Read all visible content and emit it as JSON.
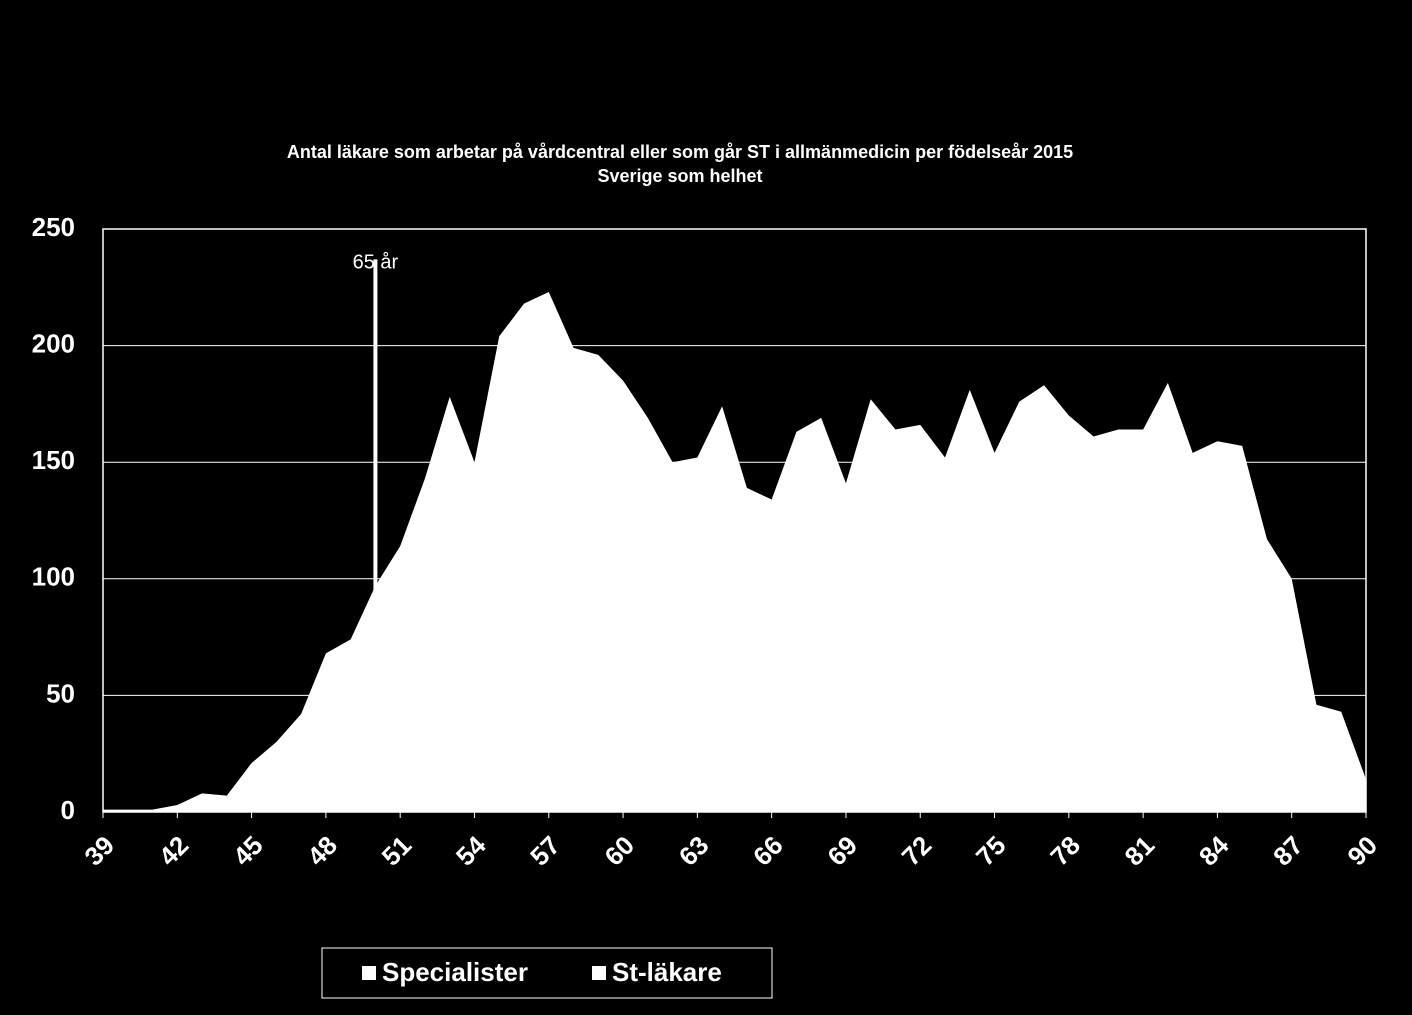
{
  "chart_data": {
    "type": "area",
    "title": "Antal läkare som arbetar på vårdcentral eller som går ST i allmänmedicin per födelseår 2015",
    "subtitle": "Sverige som helhet",
    "x": [
      39,
      40,
      41,
      42,
      43,
      44,
      45,
      46,
      47,
      48,
      49,
      50,
      51,
      52,
      53,
      54,
      55,
      56,
      57,
      58,
      59,
      60,
      61,
      62,
      63,
      64,
      65,
      66,
      67,
      68,
      69,
      70,
      71,
      72,
      73,
      74,
      75,
      76,
      77,
      78,
      79,
      80,
      81,
      82,
      83,
      84,
      85,
      86,
      87,
      88,
      89,
      90
    ],
    "series": [
      {
        "name": "Specialister",
        "color": "#ffffff",
        "values": [
          1,
          1,
          1,
          3,
          8,
          7,
          21,
          30,
          42,
          68,
          74,
          97,
          114,
          143,
          178,
          150,
          204,
          218,
          223,
          199,
          196,
          185,
          169,
          150,
          152,
          174,
          139,
          134,
          163,
          169,
          141,
          177,
          164,
          166,
          152,
          181,
          154,
          176,
          183,
          170,
          161,
          164,
          164,
          184,
          154,
          159,
          157,
          117,
          100,
          46,
          43,
          14
        ]
      },
      {
        "name": "St-läkare",
        "color": "#ffffff",
        "values": [
          null,
          null,
          null,
          null,
          null,
          null,
          null,
          null,
          null,
          null,
          null,
          null,
          null,
          null,
          null,
          null,
          null,
          null,
          null,
          null,
          null,
          null,
          null,
          null,
          null,
          null,
          null,
          null,
          null,
          null,
          null,
          null,
          null,
          null,
          null,
          null,
          null,
          null,
          null,
          null,
          null,
          null,
          null,
          null,
          null,
          null,
          null,
          null,
          null,
          null,
          null,
          null
        ]
      }
    ],
    "xlim": [
      39,
      90
    ],
    "xticks": [
      39,
      42,
      45,
      48,
      51,
      54,
      57,
      60,
      63,
      66,
      69,
      72,
      75,
      78,
      81,
      84,
      87,
      90
    ],
    "ylim": [
      0,
      250
    ],
    "yticks": [
      0,
      50,
      100,
      150,
      200,
      250
    ],
    "grid": true,
    "annotations": [
      {
        "text": "65 år",
        "x": 50,
        "y": 237
      }
    ],
    "legend": "bottom"
  }
}
